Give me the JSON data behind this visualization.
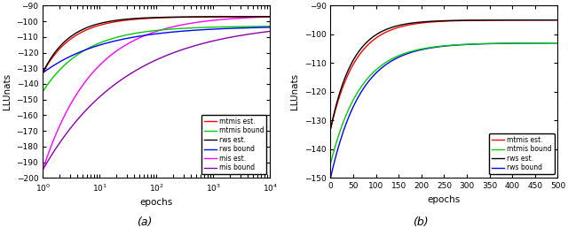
{
  "subplot_a": {
    "title": "(a)",
    "xlabel": "epochs",
    "ylabel": "LLUnats",
    "xlim_log": [
      0,
      4
    ],
    "ylim": [
      -200,
      -90
    ],
    "yticks": [
      -200,
      -190,
      -180,
      -170,
      -160,
      -150,
      -140,
      -130,
      -120,
      -110,
      -100,
      -90
    ],
    "series": [
      {
        "label": "mtmis est.",
        "color": "#ff0000",
        "y0": -133,
        "yf": -97,
        "k": 2.5
      },
      {
        "label": "mtmis bound",
        "color": "#00cc00",
        "y0": -145,
        "yf": -103,
        "k": 1.8
      },
      {
        "label": "rws est.",
        "color": "#000000",
        "y0": -133,
        "yf": -97,
        "k": 2.8
      },
      {
        "label": "rws bound",
        "color": "#0000ff",
        "y0": -133,
        "yf": -103,
        "k": 1.2
      },
      {
        "label": "mis est.",
        "color": "#ff00ff",
        "y0": -195,
        "yf": -96,
        "k": 1.5
      },
      {
        "label": "mis bound",
        "color": "#8800aa",
        "y0": -195,
        "yf": -100,
        "k": 0.9
      }
    ]
  },
  "subplot_b": {
    "title": "(b)",
    "xlabel": "epochs",
    "ylabel": "LLUnats",
    "xlim": [
      0,
      500
    ],
    "ylim": [
      -150,
      -90
    ],
    "yticks": [
      -150,
      -140,
      -130,
      -120,
      -110,
      -100,
      -90
    ],
    "xticks": [
      0,
      50,
      100,
      150,
      200,
      250,
      300,
      350,
      400,
      450,
      500
    ],
    "series": [
      {
        "label": "mtmis est.",
        "color": "#ff0000",
        "y0": -133,
        "yf": -95,
        "k": 1.8
      },
      {
        "label": "mtmis bound",
        "color": "#00cc00",
        "y0": -145,
        "yf": -103,
        "k": 1.5
      },
      {
        "label": "rws est.",
        "color": "#000000",
        "y0": -133,
        "yf": -95,
        "k": 2.0
      },
      {
        "label": "rws bound",
        "color": "#0000ff",
        "y0": -150,
        "yf": -103,
        "k": 1.5
      }
    ]
  },
  "fig_width": 6.4,
  "fig_height": 2.58,
  "dpi": 100
}
